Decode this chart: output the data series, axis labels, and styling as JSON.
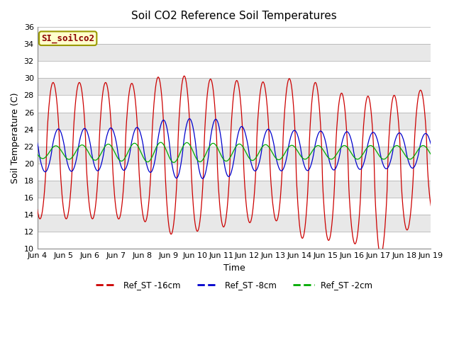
{
  "title": "Soil CO2 Reference Soil Temperatures",
  "xlabel": "Time",
  "ylabel": "Soil Temperature (C)",
  "ylim": [
    10,
    36
  ],
  "yticks": [
    10,
    12,
    14,
    16,
    18,
    20,
    22,
    24,
    26,
    28,
    30,
    32,
    34,
    36
  ],
  "x_tick_labels": [
    "Jun 4",
    "Jun 5",
    "Jun 6",
    "Jun 7",
    "Jun 8",
    "Jun 9",
    "Jun 10",
    "Jun 11",
    "Jun 12",
    "Jun 13",
    "Jun 14",
    "Jun 15",
    "Jun 16",
    "Jun 17",
    "Jun 18",
    "Jun 19"
  ],
  "annotation_text": "SI_soilco2",
  "line_colors": [
    "#cc0000",
    "#0000cc",
    "#00aa00"
  ],
  "legend_labels": [
    "Ref_ST -16cm",
    "Ref_ST -8cm",
    "Ref_ST -2cm"
  ],
  "background_color": "#ffffff",
  "plot_bg_color": "#e8e8e8",
  "band_color": "#ffffff",
  "title_fontsize": 11,
  "label_fontsize": 9,
  "tick_fontsize": 8
}
